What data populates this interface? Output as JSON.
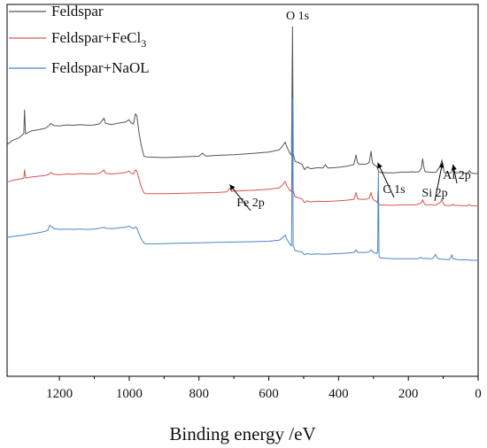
{
  "chart_data": {
    "type": "line",
    "title": "",
    "xlabel": "Binding energy /eV",
    "ylabel": "",
    "xlim": [
      1350,
      0
    ],
    "x_reversed": true,
    "xticks": [
      1200,
      1000,
      800,
      600,
      400,
      200,
      0
    ],
    "yticks_visible": false,
    "grid": false,
    "legend_position": "top-left",
    "series": [
      {
        "name": "Feldspar",
        "color": "#555555",
        "points": [
          [
            1350,
            0.623
          ],
          [
            1335,
            0.634
          ],
          [
            1315,
            0.642
          ],
          [
            1302,
            0.653
          ],
          [
            1300,
            0.716
          ],
          [
            1297,
            0.652
          ],
          [
            1280,
            0.66
          ],
          [
            1260,
            0.663
          ],
          [
            1240,
            0.667
          ],
          [
            1230,
            0.674
          ],
          [
            1225,
            0.68
          ],
          [
            1215,
            0.674
          ],
          [
            1200,
            0.673
          ],
          [
            1180,
            0.676
          ],
          [
            1160,
            0.675
          ],
          [
            1140,
            0.677
          ],
          [
            1120,
            0.675
          ],
          [
            1100,
            0.676
          ],
          [
            1085,
            0.679
          ],
          [
            1072,
            0.694
          ],
          [
            1068,
            0.68
          ],
          [
            1050,
            0.677
          ],
          [
            1030,
            0.681
          ],
          [
            1010,
            0.684
          ],
          [
            1000,
            0.69
          ],
          [
            995,
            0.682
          ],
          [
            988,
            0.678
          ],
          [
            982,
            0.706
          ],
          [
            978,
            0.7
          ],
          [
            972,
            0.655
          ],
          [
            966,
            0.623
          ],
          [
            958,
            0.592
          ],
          [
            950,
            0.59
          ],
          [
            900,
            0.588
          ],
          [
            850,
            0.59
          ],
          [
            800,
            0.592
          ],
          [
            790,
            0.6
          ],
          [
            780,
            0.592
          ],
          [
            750,
            0.594
          ],
          [
            700,
            0.596
          ],
          [
            650,
            0.599
          ],
          [
            600,
            0.603
          ],
          [
            570,
            0.609
          ],
          [
            560,
            0.62
          ],
          [
            553,
            0.63
          ],
          [
            548,
            0.617
          ],
          [
            540,
            0.6
          ],
          [
            535,
            0.594
          ],
          [
            532,
            0.94
          ],
          [
            530,
            0.6
          ],
          [
            525,
            0.578
          ],
          [
            515,
            0.575
          ],
          [
            505,
            0.57
          ],
          [
            498,
            0.556
          ],
          [
            490,
            0.563
          ],
          [
            480,
            0.558
          ],
          [
            460,
            0.561
          ],
          [
            445,
            0.56
          ],
          [
            438,
            0.569
          ],
          [
            430,
            0.56
          ],
          [
            410,
            0.561
          ],
          [
            390,
            0.563
          ],
          [
            370,
            0.566
          ],
          [
            356,
            0.57
          ],
          [
            350,
            0.595
          ],
          [
            346,
            0.575
          ],
          [
            340,
            0.57
          ],
          [
            320,
            0.571
          ],
          [
            312,
            0.575
          ],
          [
            307,
            0.605
          ],
          [
            303,
            0.575
          ],
          [
            298,
            0.568
          ],
          [
            291,
            0.565
          ],
          [
            288,
            0.558
          ],
          [
            285,
            0.55
          ],
          [
            280,
            0.548
          ],
          [
            260,
            0.547
          ],
          [
            240,
            0.547
          ],
          [
            220,
            0.549
          ],
          [
            200,
            0.549
          ],
          [
            190,
            0.55
          ],
          [
            180,
            0.549
          ],
          [
            170,
            0.55
          ],
          [
            163,
            0.559
          ],
          [
            159,
            0.585
          ],
          [
            155,
            0.56
          ],
          [
            152,
            0.55
          ],
          [
            140,
            0.549
          ],
          [
            130,
            0.548
          ],
          [
            120,
            0.549
          ],
          [
            108,
            0.566
          ],
          [
            104,
            0.582
          ],
          [
            100,
            0.56
          ],
          [
            97,
            0.548
          ],
          [
            85,
            0.546
          ],
          [
            80,
            0.547
          ],
          [
            75,
            0.551
          ],
          [
            72,
            0.56
          ],
          [
            70,
            0.549
          ],
          [
            60,
            0.547
          ],
          [
            50,
            0.548
          ],
          [
            40,
            0.547
          ],
          [
            30,
            0.546
          ],
          [
            25,
            0.553
          ],
          [
            20,
            0.547
          ],
          [
            10,
            0.545
          ],
          [
            0,
            0.546
          ]
        ]
      },
      {
        "name": "Feldspar+FeCl3",
        "color": "#d9534f",
        "points": [
          [
            1350,
            0.522
          ],
          [
            1335,
            0.527
          ],
          [
            1315,
            0.53
          ],
          [
            1302,
            0.533
          ],
          [
            1300,
            0.555
          ],
          [
            1297,
            0.533
          ],
          [
            1280,
            0.536
          ],
          [
            1260,
            0.538
          ],
          [
            1240,
            0.54
          ],
          [
            1230,
            0.543
          ],
          [
            1225,
            0.548
          ],
          [
            1215,
            0.543
          ],
          [
            1200,
            0.542
          ],
          [
            1180,
            0.544
          ],
          [
            1160,
            0.543
          ],
          [
            1140,
            0.545
          ],
          [
            1120,
            0.544
          ],
          [
            1100,
            0.544
          ],
          [
            1085,
            0.546
          ],
          [
            1072,
            0.555
          ],
          [
            1068,
            0.546
          ],
          [
            1050,
            0.544
          ],
          [
            1030,
            0.546
          ],
          [
            1010,
            0.548
          ],
          [
            1000,
            0.552
          ],
          [
            995,
            0.546
          ],
          [
            988,
            0.544
          ],
          [
            982,
            0.555
          ],
          [
            978,
            0.552
          ],
          [
            972,
            0.53
          ],
          [
            966,
            0.51
          ],
          [
            958,
            0.493
          ],
          [
            950,
            0.491
          ],
          [
            900,
            0.491
          ],
          [
            850,
            0.492
          ],
          [
            800,
            0.493
          ],
          [
            750,
            0.494
          ],
          [
            720,
            0.496
          ],
          [
            712,
            0.506
          ],
          [
            706,
            0.497
          ],
          [
            700,
            0.498
          ],
          [
            650,
            0.5
          ],
          [
            600,
            0.503
          ],
          [
            570,
            0.507
          ],
          [
            560,
            0.515
          ],
          [
            553,
            0.524
          ],
          [
            548,
            0.512
          ],
          [
            540,
            0.5
          ],
          [
            535,
            0.497
          ],
          [
            532,
            0.726
          ],
          [
            530,
            0.5
          ],
          [
            525,
            0.483
          ],
          [
            515,
            0.48
          ],
          [
            505,
            0.477
          ],
          [
            498,
            0.467
          ],
          [
            490,
            0.472
          ],
          [
            480,
            0.469
          ],
          [
            460,
            0.471
          ],
          [
            440,
            0.47
          ],
          [
            420,
            0.471
          ],
          [
            400,
            0.472
          ],
          [
            380,
            0.473
          ],
          [
            356,
            0.476
          ],
          [
            350,
            0.494
          ],
          [
            346,
            0.478
          ],
          [
            340,
            0.476
          ],
          [
            320,
            0.476
          ],
          [
            312,
            0.479
          ],
          [
            307,
            0.494
          ],
          [
            303,
            0.479
          ],
          [
            298,
            0.473
          ],
          [
            291,
            0.47
          ],
          [
            288,
            0.465
          ],
          [
            287,
            0.496
          ],
          [
            285,
            0.462
          ],
          [
            280,
            0.461
          ],
          [
            260,
            0.46
          ],
          [
            240,
            0.46
          ],
          [
            220,
            0.461
          ],
          [
            200,
            0.461
          ],
          [
            180,
            0.461
          ],
          [
            163,
            0.466
          ],
          [
            159,
            0.475
          ],
          [
            155,
            0.466
          ],
          [
            152,
            0.461
          ],
          [
            140,
            0.461
          ],
          [
            120,
            0.461
          ],
          [
            108,
            0.468
          ],
          [
            104,
            0.477
          ],
          [
            100,
            0.465
          ],
          [
            97,
            0.46
          ],
          [
            85,
            0.459
          ],
          [
            75,
            0.46
          ],
          [
            72,
            0.463
          ],
          [
            70,
            0.46
          ],
          [
            50,
            0.459
          ],
          [
            30,
            0.459
          ],
          [
            25,
            0.462
          ],
          [
            20,
            0.459
          ],
          [
            10,
            0.458
          ],
          [
            0,
            0.458
          ]
        ]
      },
      {
        "name": "Feldspar+NaOL",
        "color": "#4a86c5",
        "points": [
          [
            1350,
            0.373
          ],
          [
            1335,
            0.376
          ],
          [
            1315,
            0.378
          ],
          [
            1300,
            0.38
          ],
          [
            1280,
            0.383
          ],
          [
            1260,
            0.386
          ],
          [
            1240,
            0.39
          ],
          [
            1232,
            0.394
          ],
          [
            1228,
            0.406
          ],
          [
            1222,
            0.402
          ],
          [
            1215,
            0.397
          ],
          [
            1200,
            0.395
          ],
          [
            1180,
            0.396
          ],
          [
            1160,
            0.395
          ],
          [
            1140,
            0.396
          ],
          [
            1120,
            0.395
          ],
          [
            1100,
            0.396
          ],
          [
            1085,
            0.398
          ],
          [
            1072,
            0.401
          ],
          [
            1068,
            0.398
          ],
          [
            1050,
            0.397
          ],
          [
            1030,
            0.399
          ],
          [
            1010,
            0.401
          ],
          [
            1000,
            0.404
          ],
          [
            995,
            0.4
          ],
          [
            988,
            0.397
          ],
          [
            982,
            0.402
          ],
          [
            978,
            0.399
          ],
          [
            972,
            0.383
          ],
          [
            966,
            0.37
          ],
          [
            958,
            0.358
          ],
          [
            950,
            0.356
          ],
          [
            900,
            0.357
          ],
          [
            850,
            0.358
          ],
          [
            800,
            0.359
          ],
          [
            750,
            0.36
          ],
          [
            700,
            0.361
          ],
          [
            650,
            0.362
          ],
          [
            600,
            0.363
          ],
          [
            570,
            0.366
          ],
          [
            560,
            0.373
          ],
          [
            553,
            0.38
          ],
          [
            548,
            0.368
          ],
          [
            540,
            0.356
          ],
          [
            535,
            0.35
          ],
          [
            532,
            0.746
          ],
          [
            530,
            0.352
          ],
          [
            525,
            0.338
          ],
          [
            515,
            0.336
          ],
          [
            505,
            0.334
          ],
          [
            498,
            0.327
          ],
          [
            490,
            0.33
          ],
          [
            480,
            0.328
          ],
          [
            460,
            0.329
          ],
          [
            440,
            0.328
          ],
          [
            420,
            0.329
          ],
          [
            400,
            0.33
          ],
          [
            380,
            0.331
          ],
          [
            356,
            0.333
          ],
          [
            350,
            0.34
          ],
          [
            346,
            0.334
          ],
          [
            340,
            0.333
          ],
          [
            320,
            0.333
          ],
          [
            312,
            0.335
          ],
          [
            307,
            0.34
          ],
          [
            303,
            0.335
          ],
          [
            298,
            0.332
          ],
          [
            291,
            0.33
          ],
          [
            288,
            0.335
          ],
          [
            286,
            0.548
          ],
          [
            284,
            0.322
          ],
          [
            280,
            0.318
          ],
          [
            260,
            0.317
          ],
          [
            240,
            0.316
          ],
          [
            220,
            0.316
          ],
          [
            200,
            0.316
          ],
          [
            180,
            0.316
          ],
          [
            170,
            0.317
          ],
          [
            165,
            0.32
          ],
          [
            160,
            0.317
          ],
          [
            150,
            0.317
          ],
          [
            140,
            0.316
          ],
          [
            130,
            0.317
          ],
          [
            125,
            0.323
          ],
          [
            122,
            0.328
          ],
          [
            118,
            0.318
          ],
          [
            110,
            0.315
          ],
          [
            100,
            0.315
          ],
          [
            90,
            0.314
          ],
          [
            82,
            0.314
          ],
          [
            78,
            0.32
          ],
          [
            75,
            0.327
          ],
          [
            72,
            0.316
          ],
          [
            60,
            0.314
          ],
          [
            50,
            0.313
          ],
          [
            40,
            0.313
          ],
          [
            30,
            0.313
          ],
          [
            20,
            0.312
          ],
          [
            10,
            0.312
          ],
          [
            0,
            0.312
          ]
        ]
      }
    ],
    "annotations": [
      {
        "text": "O 1s",
        "x": 532,
        "y": 0.94,
        "arrow": false
      },
      {
        "text": "Fe 2p",
        "x": 712,
        "y": 0.506,
        "arrow": true
      },
      {
        "text": "C 1s",
        "x": 288,
        "y": 0.565,
        "arrow": true
      },
      {
        "text": "Si 2p",
        "x": 102,
        "y": 0.566,
        "arrow": true
      },
      {
        "text": "Al 2p",
        "x": 72,
        "y": 0.56,
        "arrow": true
      }
    ]
  }
}
